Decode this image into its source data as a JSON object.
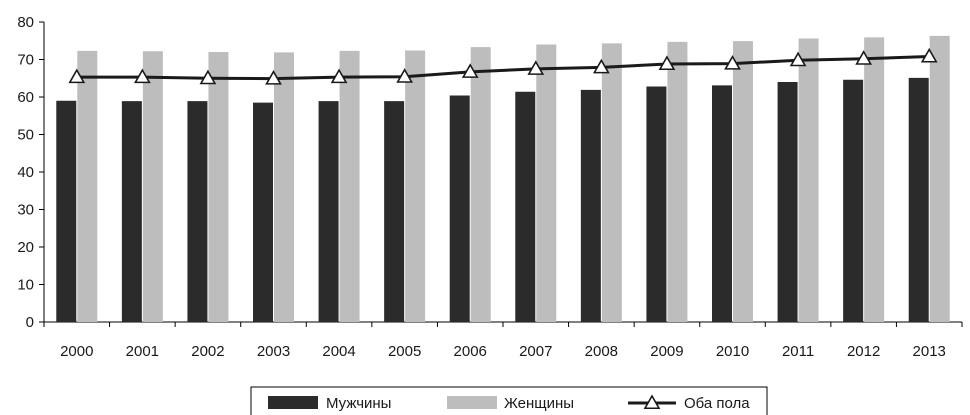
{
  "chart_data": {
    "type": "bar",
    "categories": [
      "2000",
      "2001",
      "2002",
      "2003",
      "2004",
      "2005",
      "2006",
      "2007",
      "2008",
      "2009",
      "2010",
      "2011",
      "2012",
      "2013"
    ],
    "series": [
      {
        "name": "Мужчины",
        "type": "bar",
        "color": "#2b2b2b",
        "values": [
          59.0,
          58.9,
          58.9,
          58.5,
          58.9,
          58.9,
          60.4,
          61.4,
          61.9,
          62.8,
          63.1,
          64.0,
          64.6,
          65.1
        ]
      },
      {
        "name": "Женщины",
        "type": "bar",
        "color": "#bdbdbd",
        "values": [
          72.3,
          72.2,
          72.0,
          71.9,
          72.3,
          72.4,
          73.3,
          74.0,
          74.3,
          74.7,
          74.9,
          75.6,
          75.9,
          76.3
        ]
      },
      {
        "name": "Оба пола",
        "type": "line",
        "color": "#1a1a1a",
        "marker": "triangle",
        "values": [
          65.3,
          65.3,
          65.0,
          64.9,
          65.3,
          65.4,
          66.7,
          67.5,
          67.9,
          68.8,
          68.9,
          69.8,
          70.2,
          70.8
        ]
      }
    ],
    "ylim": [
      0,
      80
    ],
    "yticks": [
      "0",
      "10",
      "20",
      "30",
      "40",
      "50",
      "60",
      "70",
      "80"
    ],
    "grid": false,
    "legend": "bottom"
  }
}
